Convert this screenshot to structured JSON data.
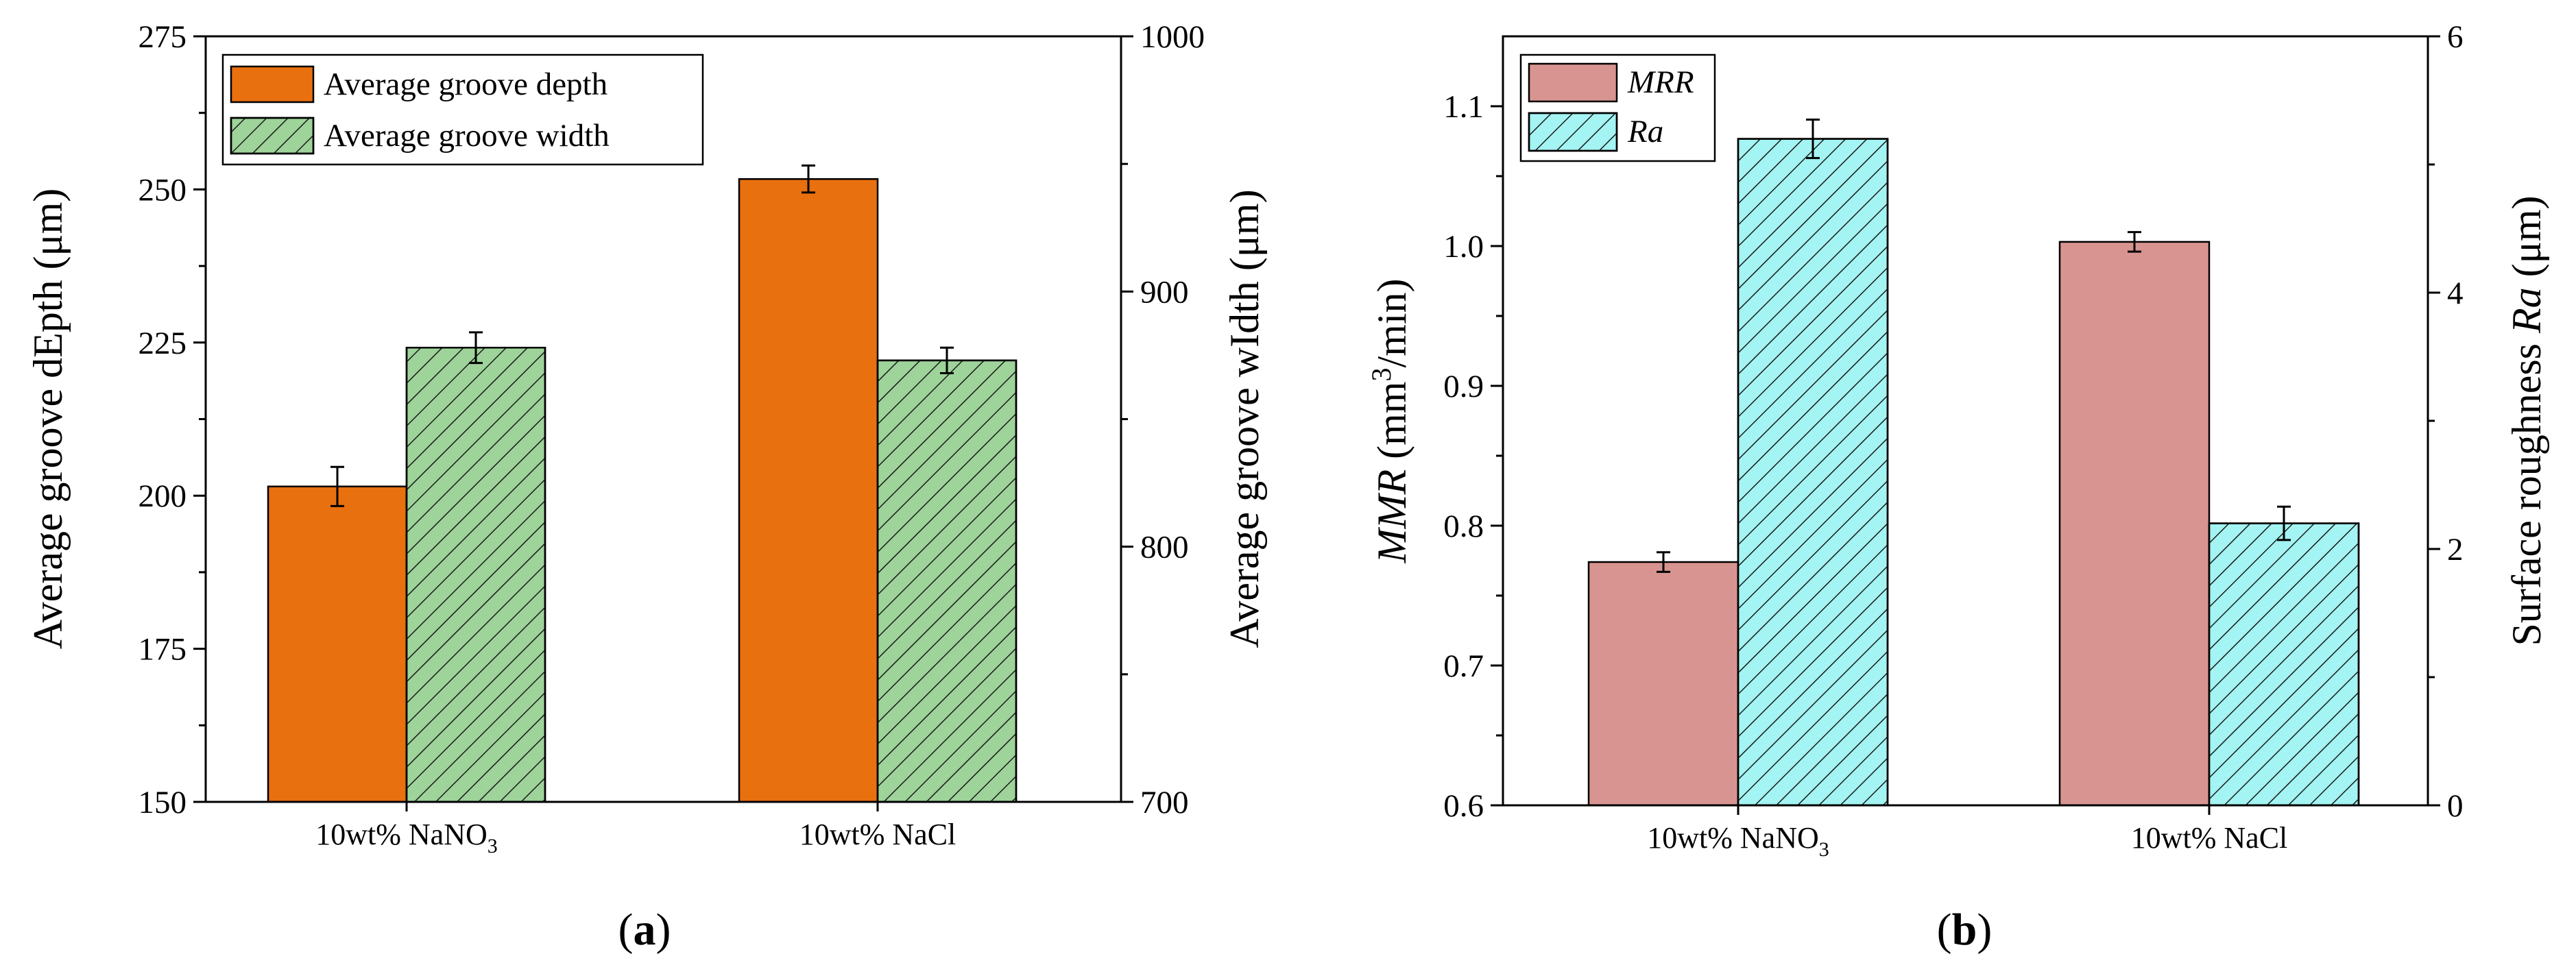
{
  "colors": {
    "orange": "#E8700E",
    "green": "#9ED39A",
    "pink": "#D89490",
    "cyan": "#A3F4F2",
    "hatch": "#1a1a1a",
    "axis": "#000000"
  },
  "chart_data": [
    {
      "type": "bar",
      "panel_label": "a",
      "categories": [
        "10wt% NaNO",
        "10wt% NaCl"
      ],
      "category_subscripts": [
        "3",
        ""
      ],
      "series": [
        {
          "name": "Average groove depth",
          "axis": "left",
          "values": [
            201.5,
            251.7
          ],
          "errors": [
            3.2,
            2.2
          ],
          "pattern": "solid"
        },
        {
          "name": "Average groove width",
          "axis": "right",
          "values": [
            878,
            873
          ],
          "errors": [
            6,
            5
          ],
          "pattern": "hatch"
        }
      ],
      "ylabel_left": "Average groove dEpth (μm)",
      "ylabel_right": "Average groove wIdth (μm)",
      "ylim_left": [
        150,
        275
      ],
      "ylim_right": [
        700,
        1000
      ],
      "yticks_left": [
        "150",
        "175",
        "200",
        "225",
        "250",
        "275"
      ],
      "yticks_right": [
        "700",
        "800",
        "900",
        "1000"
      ],
      "legend_position": "top-left",
      "grid": false
    },
    {
      "type": "bar",
      "panel_label": "b",
      "categories": [
        "10wt% NaNO",
        "10wt% NaCl"
      ],
      "category_subscripts": [
        "3",
        ""
      ],
      "series": [
        {
          "name": "MRR",
          "axis": "left",
          "values": [
            0.774,
            1.003
          ],
          "errors": [
            0.007,
            0.007
          ],
          "pattern": "solid"
        },
        {
          "name": "Ra",
          "axis": "right",
          "values": [
            5.2,
            2.2
          ],
          "errors": [
            0.15,
            0.13
          ],
          "pattern": "hatch"
        }
      ],
      "ylabel_left": {
        "italic": "MMR",
        "plain": " (mm",
        "sup": "3",
        "tail": "/min)"
      },
      "ylabel_right": {
        "plain": "Surface roughness ",
        "italic": "Ra",
        "tail": " (μm)"
      },
      "ylim_left": [
        0.6,
        1.15
      ],
      "ylim_right": [
        0,
        6
      ],
      "yticks_left": [
        "0.6",
        "0.7",
        "0.8",
        "0.9",
        "1.0",
        "1.1"
      ],
      "yticks_right": [
        "0",
        "2",
        "4",
        "6"
      ],
      "legend_position": "top-left",
      "grid": false
    }
  ]
}
